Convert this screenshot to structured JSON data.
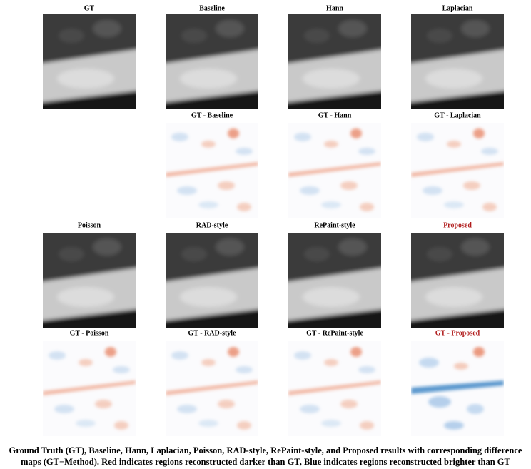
{
  "figure": {
    "rows": [
      [
        "GT",
        "Baseline",
        "Hann",
        "Laplacian"
      ],
      [
        null,
        "GT - Baseline",
        "GT - Hann",
        "GT - Laplacian"
      ],
      [
        "Poisson",
        "RAD-style",
        "RePaint-style",
        "Proposed"
      ],
      [
        "GT - Poisson",
        "GT - RAD-style",
        "GT - RePaint-style",
        "GT - Proposed"
      ]
    ],
    "caption": [
      "Ground Truth (GT), Baseline, Hann, Laplacian, Poisson, RAD-style, RePaint-style, and Proposed results with corresponding difference",
      "maps (GT−Method). Red indicates regions reconstructed darker than GT, Blue indicates regions reconstructed brighter than GT"
    ]
  }
}
